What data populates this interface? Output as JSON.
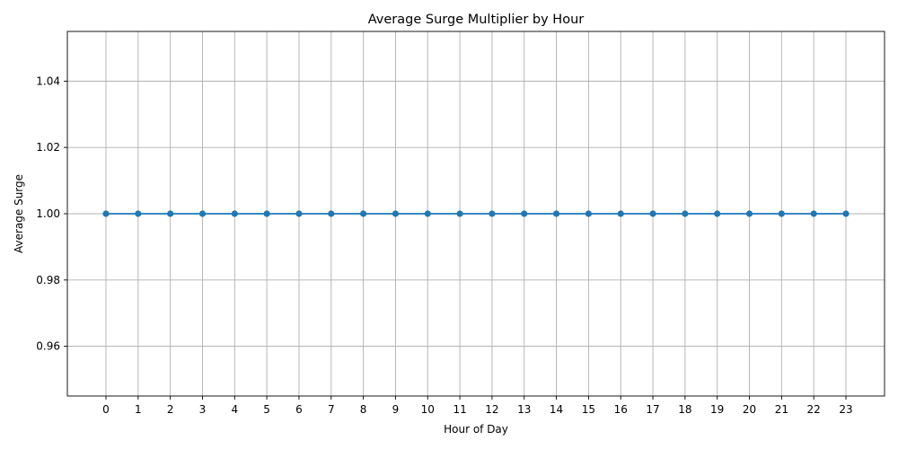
{
  "chart_data": {
    "type": "line",
    "title": "Average Surge Multiplier by Hour",
    "xlabel": "Hour of Day",
    "ylabel": "Average Surge",
    "x": [
      0,
      1,
      2,
      3,
      4,
      5,
      6,
      7,
      8,
      9,
      10,
      11,
      12,
      13,
      14,
      15,
      16,
      17,
      18,
      19,
      20,
      21,
      22,
      23
    ],
    "x_tick_labels": [
      "0",
      "1",
      "2",
      "3",
      "4",
      "5",
      "6",
      "7",
      "8",
      "9",
      "10",
      "11",
      "12",
      "13",
      "14",
      "15",
      "16",
      "17",
      "18",
      "19",
      "20",
      "21",
      "22",
      "23"
    ],
    "series": [
      {
        "values": [
          1,
          1,
          1,
          1,
          1,
          1,
          1,
          1,
          1,
          1,
          1,
          1,
          1,
          1,
          1,
          1,
          1,
          1,
          1,
          1,
          1,
          1,
          1,
          1
        ],
        "color": "#1f77b4",
        "marker": "circle"
      }
    ],
    "xlim": [
      -1.2,
      24.2
    ],
    "ylim": [
      0.945,
      1.055
    ],
    "y_ticks": [
      0.96,
      0.98,
      1.0,
      1.02,
      1.04
    ],
    "y_tick_labels": [
      "0.96",
      "0.98",
      "1.00",
      "1.02",
      "1.04"
    ],
    "grid": true,
    "legend": "none"
  }
}
